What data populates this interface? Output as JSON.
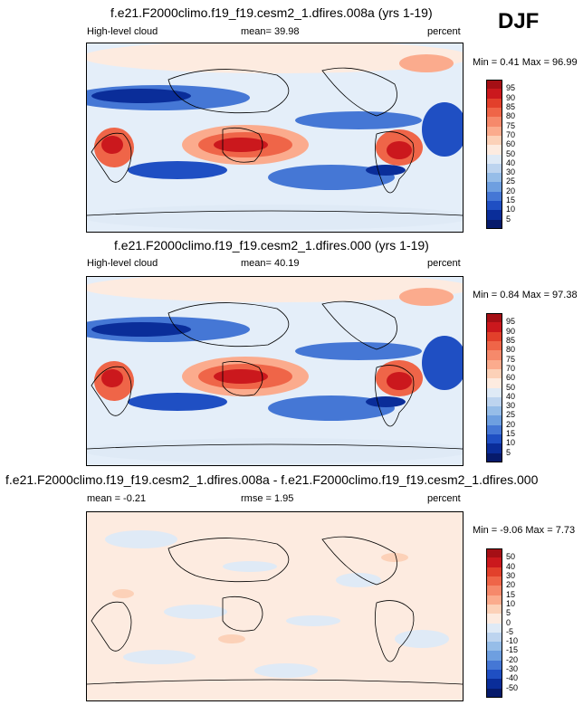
{
  "header": {
    "season": "DJF"
  },
  "panels": [
    {
      "title": "f.e21.F2000climo.f19_f19.cesm2_1.dfires.008a (yrs 1-19)",
      "left_label": "High-level cloud",
      "center_label": "mean=  39.98",
      "right_label": "percent",
      "minmax": "Min =  0.41 Max =  96.99"
    },
    {
      "title": "f.e21.F2000climo.f19_f19.cesm2_1.dfires.000 (yrs 1-19)",
      "left_label": "High-level cloud",
      "center_label": "mean=  40.19",
      "right_label": "percent",
      "minmax": "Min =  0.84 Max =  97.38"
    },
    {
      "title": "f.e21.F2000climo.f19_f19.cesm2_1.dfires.008a - f.e21.F2000climo.f19_f19.cesm2_1.dfires.000",
      "left_label": "mean =  -0.21",
      "center_label": "rmse =   1.95",
      "right_label": "percent",
      "minmax": "Min =  -9.06 Max =   7.73"
    }
  ],
  "chart_data": [
    {
      "type": "heatmap",
      "title": "f.e21.F2000climo.f19_f19.cesm2_1.dfires.008a (yrs 1-19)",
      "variable": "High-level cloud",
      "units": "percent",
      "mean": 39.98,
      "min": 0.41,
      "max": 96.99,
      "colorbar_levels": [
        "95",
        "90",
        "85",
        "80",
        "75",
        "70",
        "60",
        "50",
        "40",
        "30",
        "25",
        "20",
        "15",
        "10",
        "5"
      ],
      "colorbar_colors": [
        "#a50f15",
        "#cb181d",
        "#e2402b",
        "#ef6548",
        "#f6896b",
        "#fbab8d",
        "#fcd1b8",
        "#fdebe0",
        "#dfeaf6",
        "#bdd4ef",
        "#96bde8",
        "#6e9fe0",
        "#4577d5",
        "#1f4fc3",
        "#0a2d99",
        "#061a6b"
      ]
    },
    {
      "type": "heatmap",
      "title": "f.e21.F2000climo.f19_f19.cesm2_1.dfires.000 (yrs 1-19)",
      "variable": "High-level cloud",
      "units": "percent",
      "mean": 40.19,
      "min": 0.84,
      "max": 97.38,
      "colorbar_levels": [
        "95",
        "90",
        "85",
        "80",
        "75",
        "70",
        "60",
        "50",
        "40",
        "30",
        "25",
        "20",
        "15",
        "10",
        "5"
      ],
      "colorbar_colors": [
        "#a50f15",
        "#cb181d",
        "#e2402b",
        "#ef6548",
        "#f6896b",
        "#fbab8d",
        "#fcd1b8",
        "#fdebe0",
        "#dfeaf6",
        "#bdd4ef",
        "#96bde8",
        "#6e9fe0",
        "#4577d5",
        "#1f4fc3",
        "#0a2d99",
        "#061a6b"
      ]
    },
    {
      "type": "heatmap",
      "title": "f.e21.F2000climo.f19_f19.cesm2_1.dfires.008a - f.e21.F2000climo.f19_f19.cesm2_1.dfires.000",
      "units": "percent",
      "mean": -0.21,
      "rmse": 1.95,
      "min": -9.06,
      "max": 7.73,
      "colorbar_levels": [
        "50",
        "40",
        "30",
        "20",
        "15",
        "10",
        "5",
        "0",
        "-5",
        "-10",
        "-15",
        "-20",
        "-30",
        "-40",
        "-50"
      ],
      "colorbar_colors": [
        "#a50f15",
        "#cb181d",
        "#e2402b",
        "#ef6548",
        "#f6896b",
        "#fbab8d",
        "#fcd1b8",
        "#fdebe0",
        "#dfeaf6",
        "#bdd4ef",
        "#96bde8",
        "#6e9fe0",
        "#4577d5",
        "#1f4fc3",
        "#0a2d99",
        "#061a6b"
      ]
    }
  ]
}
